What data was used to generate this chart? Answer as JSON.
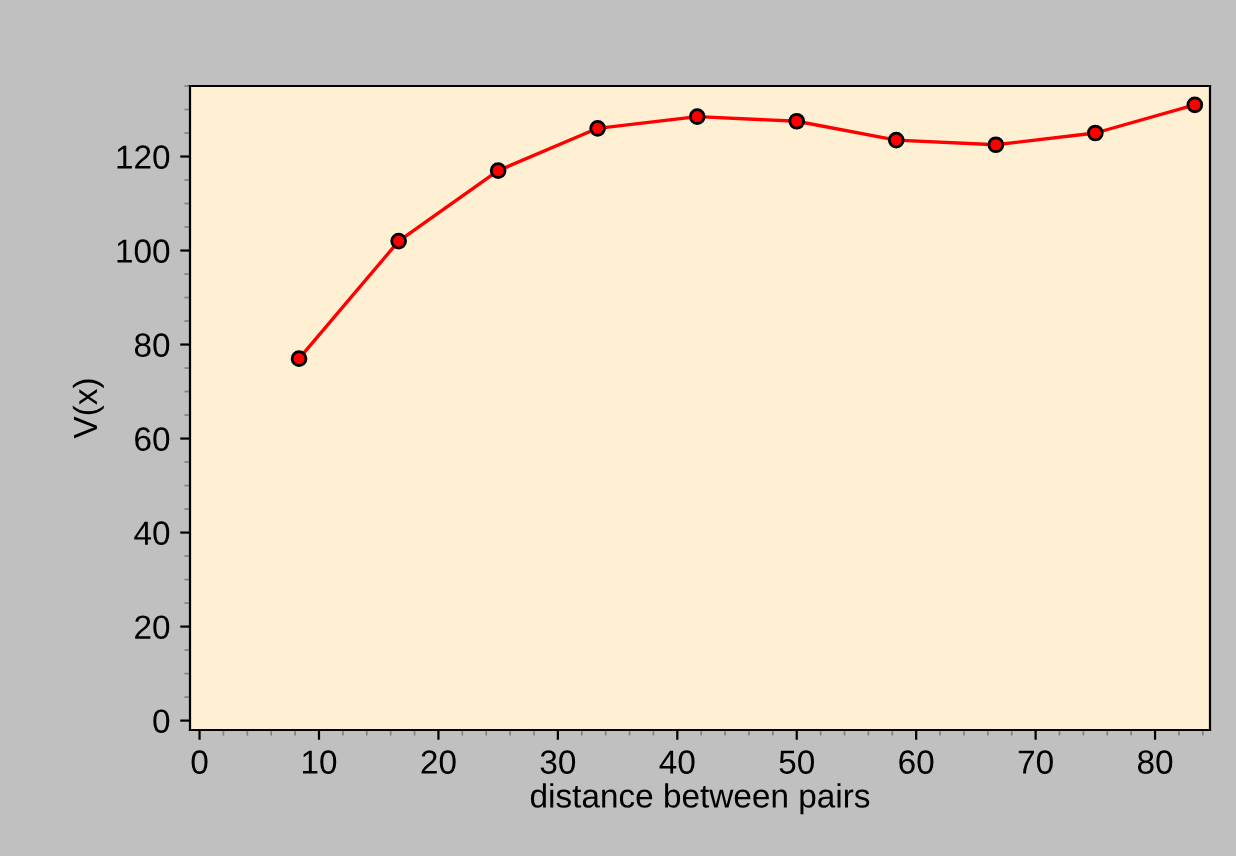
{
  "chart_data": {
    "type": "line",
    "xlabel": "distance between pairs",
    "ylabel": "V(x)",
    "x": [
      8.33,
      16.67,
      25,
      33.33,
      41.67,
      50,
      58.33,
      66.67,
      75,
      83.33
    ],
    "series": [
      {
        "color": "#ff0000",
        "values": [
          77,
          102,
          117,
          126,
          128.5,
          127.5,
          123.5,
          122.5,
          125,
          131
        ]
      }
    ],
    "xlim": [
      -0.8,
      84.6
    ],
    "ylim": [
      -2,
      135
    ],
    "xticks": [
      0,
      10,
      20,
      30,
      40,
      50,
      60,
      70,
      80
    ],
    "yticks": [
      0,
      20,
      40,
      60,
      80,
      100,
      120
    ],
    "marker": "circle",
    "line_style": "solid",
    "grid": false,
    "legend": false
  }
}
